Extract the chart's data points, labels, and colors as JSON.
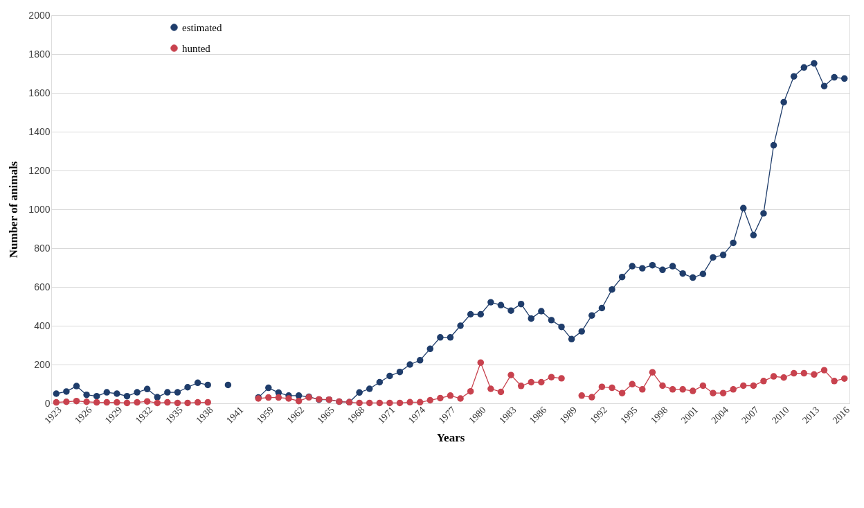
{
  "chart_data": {
    "type": "line",
    "xlabel": "Years",
    "ylabel": "Number of animals",
    "categories": [
      "1923",
      null,
      null,
      "1926",
      null,
      null,
      "1929",
      null,
      null,
      "1932",
      null,
      null,
      "1935",
      null,
      null,
      "1938",
      null,
      null,
      "1941",
      null,
      null,
      "1959",
      null,
      null,
      "1962",
      null,
      null,
      "1965",
      null,
      null,
      "1968",
      null,
      null,
      "1971",
      null,
      null,
      "1974",
      null,
      null,
      "1977",
      null,
      null,
      "1980",
      null,
      null,
      "1983",
      null,
      null,
      "1986",
      null,
      null,
      "1989",
      null,
      null,
      "1992",
      null,
      null,
      "1995",
      null,
      null,
      "1998",
      null,
      null,
      "2001",
      null,
      null,
      "2004",
      null,
      null,
      "2007",
      null,
      null,
      "2010",
      null,
      null,
      "2013",
      null,
      null,
      "2016"
    ],
    "series": [
      {
        "name": "estimated",
        "color": "#1f3d6b",
        "values": [
          50,
          61,
          89,
          44,
          37,
          57,
          50,
          37,
          57,
          74,
          32,
          57,
          57,
          83,
          106,
          95,
          null,
          95,
          null,
          null,
          30,
          80,
          55,
          40,
          40,
          34,
          19,
          19,
          9,
          6,
          56,
          75,
          109,
          141,
          162,
          200,
          222,
          281,
          340,
          340,
          400,
          459,
          459,
          521,
          506,
          478,
          512,
          437,
          475,
          429,
          394,
          331,
          371,
          453,
          491,
          587,
          651,
          707,
          696,
          712,
          688,
          707,
          669,
          648,
          667,
          752,
          765,
          827,
          1006,
          867,
          979,
          1330,
          1552,
          1685,
          1731,
          1752,
          1635,
          1680,
          1674
        ]
      },
      {
        "name": "hunted",
        "color": "#c8424e",
        "values": [
          5,
          8,
          12,
          8,
          5,
          5,
          5,
          2,
          5,
          10,
          2,
          5,
          2,
          2,
          5,
          5,
          null,
          null,
          null,
          null,
          25,
          30,
          30,
          25,
          12,
          31,
          21,
          19,
          9,
          6,
          2,
          2,
          2,
          2,
          2,
          6,
          6,
          16,
          27,
          40,
          25,
          62,
          210,
          75,
          59,
          146,
          90,
          109,
          109,
          135,
          129,
          null,
          40,
          32,
          85,
          80,
          53,
          99,
          72,
          160,
          91,
          72,
          72,
          64,
          91,
          53,
          53,
          72,
          91,
          91,
          115,
          139,
          133,
          155,
          155,
          149,
          171,
          115,
          128
        ]
      }
    ],
    "ylim": [
      0,
      2000
    ],
    "yticks": [
      0,
      200,
      400,
      600,
      800,
      1000,
      1200,
      1400,
      1600,
      1800,
      2000
    ],
    "grid": "y",
    "legend": "top left",
    "marker": "circle",
    "line_style": "solid"
  }
}
